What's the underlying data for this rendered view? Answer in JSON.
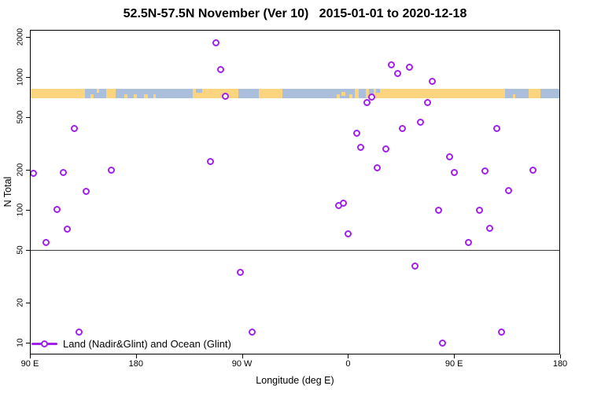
{
  "chart_data": {
    "type": "scatter",
    "title": "52.5N-57.5N November (Ver 10)   2015-01-01 to 2020-12-18",
    "xlabel": "Longitude (deg E)",
    "ylabel": "N Total",
    "y_scale": "log",
    "ylim": [
      8,
      2300
    ],
    "xlim_deg_e_continuous": [
      90,
      540
    ],
    "grid": false,
    "x_ticks": [
      {
        "deg": 90,
        "label": "90 E"
      },
      {
        "deg": 180,
        "label": "180"
      },
      {
        "deg": 270,
        "label": "90 W"
      },
      {
        "deg": 360,
        "label": "0"
      },
      {
        "deg": 450,
        "label": "90 E"
      },
      {
        "deg": 540,
        "label": "180"
      }
    ],
    "y_ticks": [
      10,
      20,
      50,
      100,
      200,
      500,
      1000,
      2000
    ],
    "reference_line_n": 50,
    "legend_label": "Land (Nadir&Glint) and Ocean (Glint)",
    "legend_marker": "open-circle-on-line",
    "legend_position": "bottom-left",
    "point_color": "#A020F0",
    "points_lon_deg_vs_n": [
      [
        93.0,
        189
      ],
      [
        104.0,
        57
      ],
      [
        113.3,
        101
      ],
      [
        118.7,
        192
      ],
      [
        122.0,
        72
      ],
      [
        127.7,
        411
      ],
      [
        131.5,
        12
      ],
      [
        137.5,
        138
      ],
      [
        159.3,
        199
      ],
      [
        243.5,
        230
      ],
      [
        248.2,
        1820
      ],
      [
        252.2,
        1135
      ],
      [
        256.2,
        721
      ],
      [
        268.7,
        34
      ],
      [
        278.7,
        12
      ],
      [
        352.0,
        108
      ],
      [
        356.0,
        112
      ],
      [
        360.0,
        66
      ],
      [
        367.7,
        375
      ],
      [
        371.0,
        296
      ],
      [
        376.2,
        642
      ],
      [
        380.2,
        708
      ],
      [
        384.9,
        206
      ],
      [
        392.0,
        286
      ],
      [
        396.9,
        1239
      ],
      [
        402.1,
        1060
      ],
      [
        406.3,
        407
      ],
      [
        412.1,
        1188
      ],
      [
        417.1,
        38
      ],
      [
        421.5,
        454
      ],
      [
        427.4,
        640
      ],
      [
        431.4,
        929
      ],
      [
        437.1,
        100
      ],
      [
        440.0,
        10
      ],
      [
        446.2,
        250
      ],
      [
        450.2,
        190
      ],
      [
        462.2,
        57
      ],
      [
        471.5,
        100
      ],
      [
        476.2,
        195
      ],
      [
        480.4,
        73
      ],
      [
        486.2,
        412
      ],
      [
        490.0,
        12
      ],
      [
        496.0,
        139
      ],
      [
        516.9,
        198
      ]
    ],
    "map_strip": {
      "n_range": [
        690,
        815
      ],
      "land_color": "#FAD47E",
      "ocean_color": "#A9BFDB",
      "segments": [
        {
          "from": 90,
          "to": 136.5,
          "surface": "land"
        },
        {
          "from": 136.5,
          "to": 155,
          "surface": "ocean"
        },
        {
          "from": 155,
          "to": 163,
          "surface": "land"
        },
        {
          "from": 163,
          "to": 228,
          "surface": "ocean"
        },
        {
          "from": 228,
          "to": 267,
          "surface": "land"
        },
        {
          "from": 267,
          "to": 284,
          "surface": "ocean"
        },
        {
          "from": 284,
          "to": 304,
          "surface": "land"
        },
        {
          "from": 304,
          "to": 366,
          "surface": "ocean"
        },
        {
          "from": 366,
          "to": 369,
          "surface": "land"
        },
        {
          "from": 369,
          "to": 375,
          "surface": "ocean"
        },
        {
          "from": 375,
          "to": 378,
          "surface": "land"
        },
        {
          "from": 378,
          "to": 382,
          "surface": "ocean"
        },
        {
          "from": 382,
          "to": 493,
          "surface": "land"
        },
        {
          "from": 493,
          "to": 513,
          "surface": "ocean"
        },
        {
          "from": 513,
          "to": 523,
          "surface": "land"
        },
        {
          "from": 523,
          "to": 540,
          "surface": "ocean"
        }
      ],
      "specks": [
        {
          "from": 141.5,
          "to": 144,
          "surface": "land",
          "align": "bottom"
        },
        {
          "from": 147,
          "to": 149,
          "surface": "land",
          "align": "top"
        },
        {
          "from": 170,
          "to": 173,
          "surface": "land",
          "align": "bottom"
        },
        {
          "from": 178,
          "to": 181,
          "surface": "land",
          "align": "bottom"
        },
        {
          "from": 187,
          "to": 190,
          "surface": "land",
          "align": "bottom"
        },
        {
          "from": 195,
          "to": 197,
          "surface": "land",
          "align": "bottom"
        },
        {
          "from": 231,
          "to": 236,
          "surface": "ocean",
          "align": "top"
        },
        {
          "from": 350.5,
          "to": 353,
          "surface": "land",
          "align": "bottom"
        },
        {
          "from": 354.5,
          "to": 358,
          "surface": "land",
          "align": "middle"
        },
        {
          "from": 361,
          "to": 364,
          "surface": "land",
          "align": "bottom"
        },
        {
          "from": 384,
          "to": 387,
          "surface": "ocean",
          "align": "top"
        },
        {
          "from": 500,
          "to": 502,
          "surface": "land",
          "align": "bottom"
        }
      ]
    }
  }
}
